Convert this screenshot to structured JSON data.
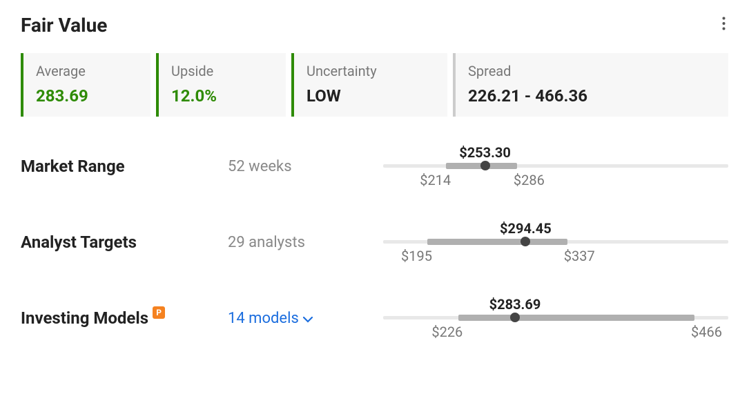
{
  "title": "Fair Value",
  "colors": {
    "green": "#2e8b05",
    "gray_border": "#cccccc",
    "value_dark": "#222222",
    "link": "#1b6dde",
    "badge_bg": "#f58220"
  },
  "summary": [
    {
      "label": "Average",
      "value": "283.69",
      "border": "#2e8b05",
      "value_color": "#2e8b05",
      "size": "small"
    },
    {
      "label": "Upside",
      "value": "12.0%",
      "border": "#2e8b05",
      "value_color": "#2e8b05",
      "size": "small"
    },
    {
      "label": "Uncertainty",
      "value": "LOW",
      "border": "#2e8b05",
      "value_color": "#222222",
      "size": "medium"
    },
    {
      "label": "Spread",
      "value": "226.21 - 466.36",
      "border": "#cccccc",
      "value_color": "#222222",
      "size": "large"
    }
  ],
  "rows": [
    {
      "name": "market-range",
      "label": "Market Range",
      "sub": "52 weeks",
      "sub_link": false,
      "badge": false,
      "slider": {
        "track_min": 150,
        "track_max": 500,
        "bar_min": 214,
        "bar_max": 286,
        "point": 253.3,
        "top_label": "$253.30",
        "low_label": "$214",
        "high_label": "$286"
      }
    },
    {
      "name": "analyst-targets",
      "label": "Analyst Targets",
      "sub": "29 analysts",
      "sub_link": false,
      "badge": false,
      "slider": {
        "track_min": 150,
        "track_max": 500,
        "bar_min": 195,
        "bar_max": 337,
        "point": 294.45,
        "top_label": "$294.45",
        "low_label": "$195",
        "high_label": "$337"
      }
    },
    {
      "name": "investing-models",
      "label": "Investing Models",
      "sub": "14 models",
      "sub_link": true,
      "badge": true,
      "slider": {
        "track_min": 150,
        "track_max": 500,
        "bar_min": 226,
        "bar_max": 466,
        "point": 283.69,
        "top_label": "$283.69",
        "low_label": "$226",
        "high_label": "$466"
      }
    }
  ]
}
